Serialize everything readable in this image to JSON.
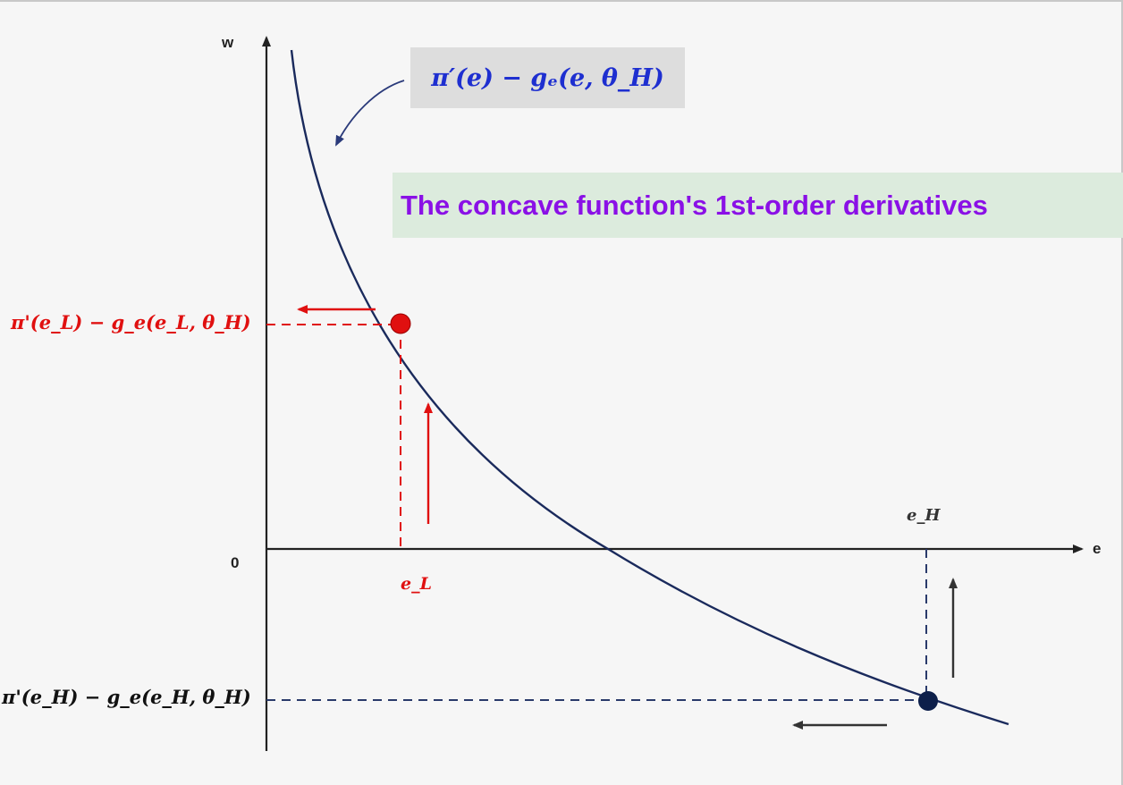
{
  "axes": {
    "y_label": "w",
    "x_label": "e",
    "origin_label": "0"
  },
  "callout": {
    "text": "π′(e) − gₑ(e, θ_H)",
    "color": "#1e2fd0"
  },
  "note": {
    "text": "The concave function's 1st-order derivatives",
    "color": "#8a10e6"
  },
  "points": {
    "low": {
      "y_label": "π'(e_L) − g_e(e_L, θ_H)",
      "x_label": "e_L",
      "color": "#e01010"
    },
    "high": {
      "y_label": "π'(e_H) − g_e(e_H, θ_H)",
      "x_label": "e_H",
      "color": "#0d1f4a"
    }
  },
  "colors": {
    "curve": "#1a2a5c",
    "axis": "#222222",
    "arrow_dark": "#333333"
  }
}
